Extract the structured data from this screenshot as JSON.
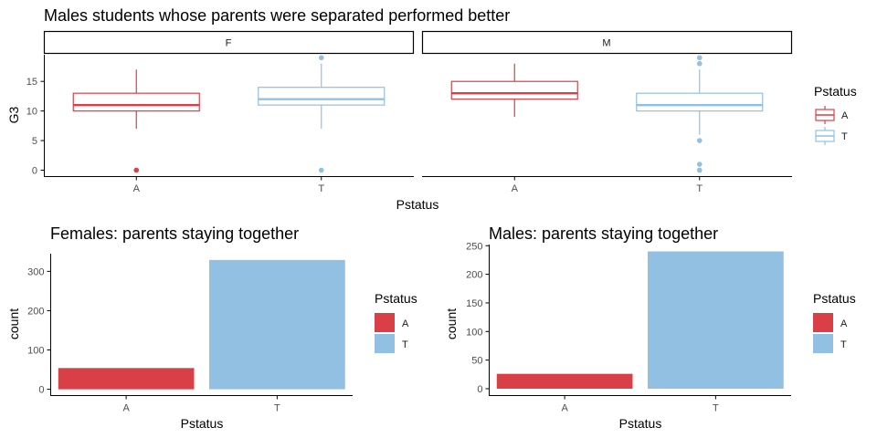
{
  "colors": {
    "A": "#d93f47",
    "T": "#92c0e2",
    "axis": "#000000",
    "tick_text": "#4d4d4d"
  },
  "chart_data": [
    {
      "type": "boxplot",
      "title": "Males students whose parents were separated performed better",
      "xlabel": "Pstatus",
      "ylabel": "G3",
      "ylim": [
        -1,
        19.5
      ],
      "yticks": [
        0,
        5,
        10,
        15
      ],
      "categories": [
        "A",
        "T"
      ],
      "legend": {
        "title": "Pstatus",
        "entries": [
          "A",
          "T"
        ],
        "placement": "right"
      },
      "facets": [
        {
          "label": "F",
          "boxes": [
            {
              "category": "A",
              "lower_whisker": 7,
              "q1": 10,
              "median": 11,
              "q3": 13,
              "upper_whisker": 17,
              "outliers": [
                0
              ]
            },
            {
              "category": "T",
              "lower_whisker": 7,
              "q1": 11,
              "median": 12,
              "q3": 14,
              "upper_whisker": 18,
              "outliers": [
                0,
                19
              ]
            }
          ]
        },
        {
          "label": "M",
          "boxes": [
            {
              "category": "A",
              "lower_whisker": 9,
              "q1": 12,
              "median": 13,
              "q3": 15,
              "upper_whisker": 18,
              "outliers": []
            },
            {
              "category": "T",
              "lower_whisker": 6,
              "q1": 10,
              "median": 11,
              "q3": 13,
              "upper_whisker": 17,
              "outliers": [
                0,
                0,
                1,
                5,
                18,
                19
              ]
            }
          ]
        }
      ]
    },
    {
      "type": "bar",
      "title": "Females: parents staying together",
      "xlabel": "Pstatus",
      "ylabel": "count",
      "categories": [
        "A",
        "T"
      ],
      "values": [
        54,
        329
      ],
      "ylim": [
        -16,
        345
      ],
      "yticks": [
        0,
        100,
        200,
        300
      ],
      "legend": {
        "title": "Pstatus",
        "entries": [
          "A",
          "T"
        ],
        "placement": "right"
      }
    },
    {
      "type": "bar",
      "title": "Males: parents staying together",
      "xlabel": "Pstatus",
      "ylabel": "count",
      "categories": [
        "A",
        "T"
      ],
      "values": [
        26,
        240
      ],
      "ylim": [
        -12,
        252
      ],
      "yticks": [
        0,
        50,
        100,
        150,
        200,
        250
      ],
      "legend": {
        "title": "Pstatus",
        "entries": [
          "A",
          "T"
        ],
        "placement": "right"
      }
    }
  ]
}
